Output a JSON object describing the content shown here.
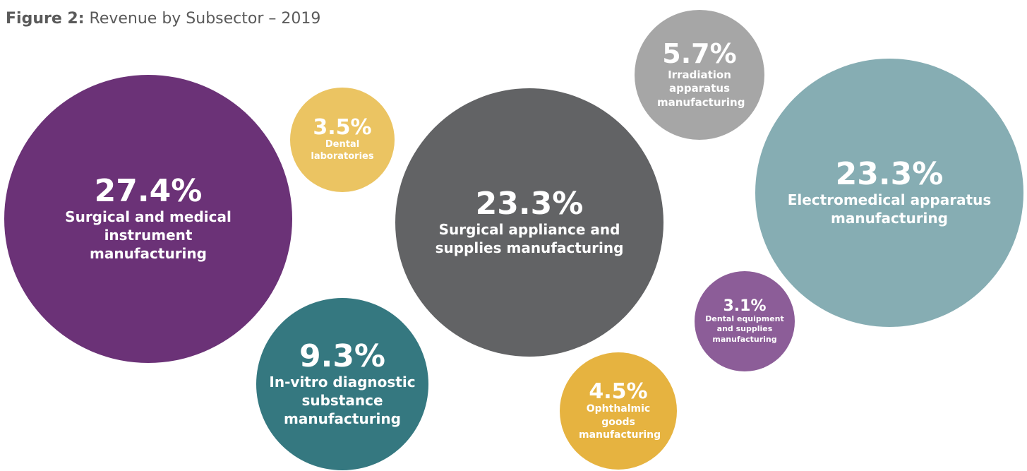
{
  "figure": {
    "label": "Figure 2:",
    "title": "Revenue by Subsector – 2019"
  },
  "chart_data": {
    "type": "bubble",
    "title": "Figure 2: Revenue by Subsector – 2019",
    "unit": "%",
    "series": [
      {
        "name": "Surgical and medical instrument manufacturing",
        "value": 27.4,
        "label": "27.4%",
        "color": "#6b3277"
      },
      {
        "name": "Dental laboratories",
        "value": 3.5,
        "label": "3.5%",
        "color": "#ebc462"
      },
      {
        "name": "Surgical appliance and supplies manufacturing",
        "value": 23.3,
        "label": "23.3%",
        "color": "#626365"
      },
      {
        "name": "Irradiation apparatus manufacturing",
        "value": 5.7,
        "label": "5.7%",
        "color": "#a6a6a6"
      },
      {
        "name": "Electromedical apparatus manufacturing",
        "value": 23.3,
        "label": "23.3%",
        "color": "#86adb3"
      },
      {
        "name": "In-vitro diagnostic substance manufacturing",
        "value": 9.3,
        "label": "9.3%",
        "color": "#357880"
      },
      {
        "name": "Dental equipment and supplies manufacturing",
        "value": 3.1,
        "label": "3.1%",
        "color": "#8c5d98"
      },
      {
        "name": "Ophthalmic goods manufacturing",
        "value": 4.5,
        "label": "4.5%",
        "color": "#e6b340"
      }
    ]
  },
  "bubbles": [
    {
      "pct": "27.4%",
      "name": "Surgical and medical instrument manufacturing"
    },
    {
      "pct": "3.5%",
      "name": "Dental laboratories"
    },
    {
      "pct": "23.3%",
      "name": "Surgical appliance and supplies manufacturing"
    },
    {
      "pct": "5.7%",
      "name": "Irradiation apparatus manufacturing"
    },
    {
      "pct": "23.3%",
      "name": "Electromedical apparatus manufacturing"
    },
    {
      "pct": "9.3%",
      "name": "In-vitro diagnostic substance manufacturing"
    },
    {
      "pct": "3.1%",
      "name": "Dental equipment and supplies manufacturing"
    },
    {
      "pct": "4.5%",
      "name": "Ophthalmic goods manufacturing"
    }
  ]
}
